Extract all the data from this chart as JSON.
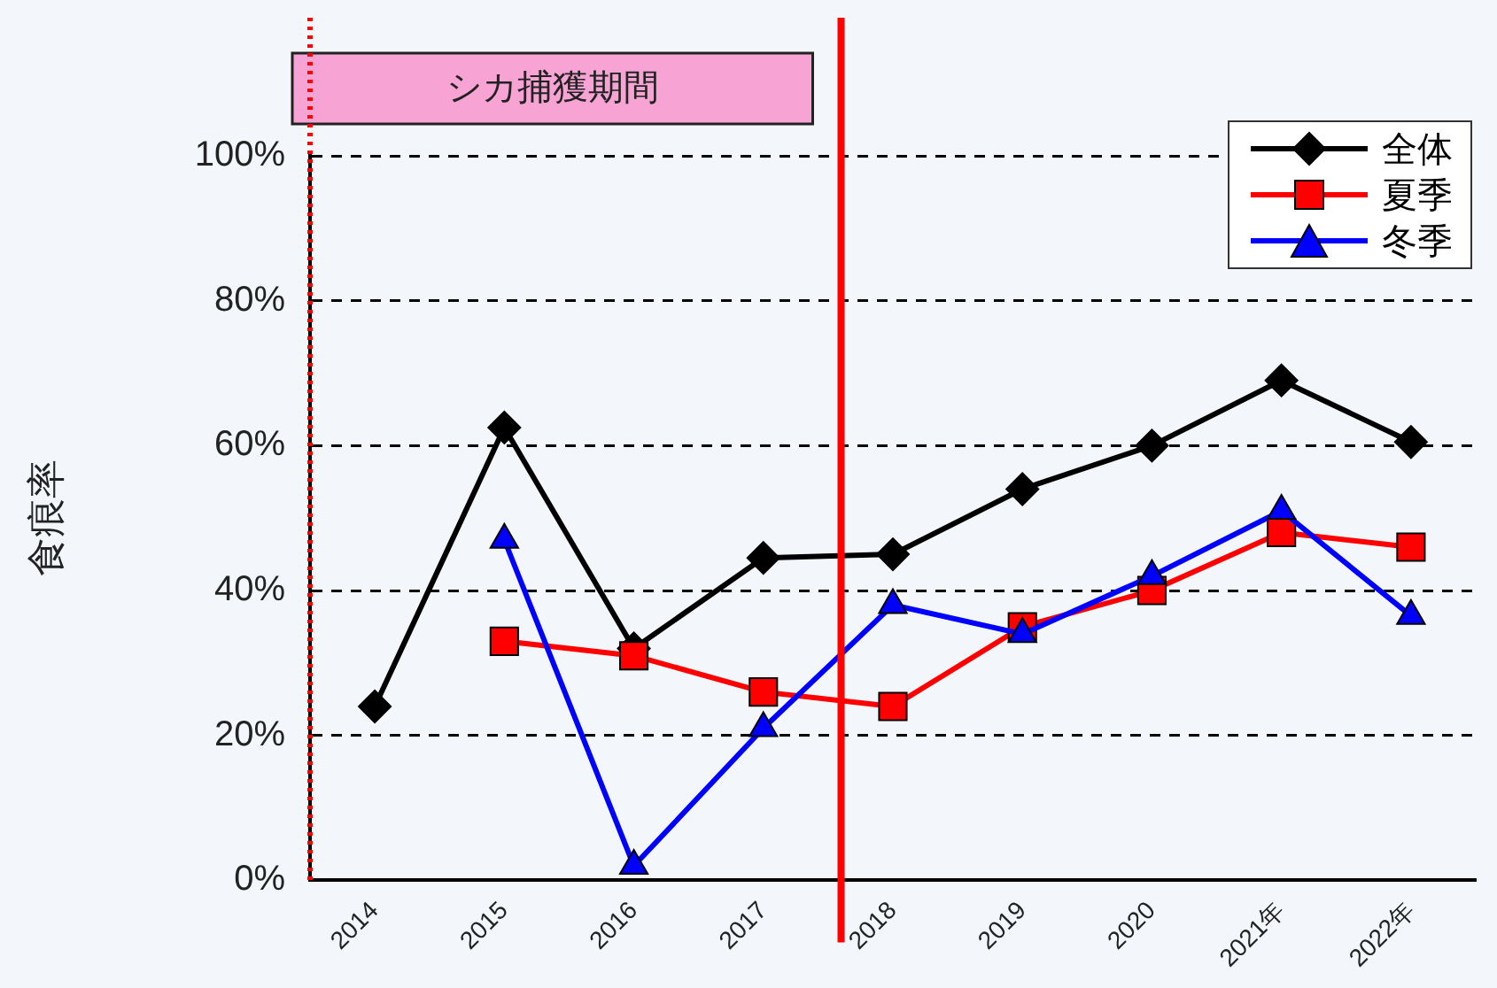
{
  "chart_data": {
    "type": "line",
    "ylabel": "食痕率",
    "x": [
      2014,
      2015,
      2016,
      2017,
      2018,
      2019,
      2020,
      2021,
      2022
    ],
    "xlim": [
      2013.5,
      2022.5
    ],
    "xticks": [
      {
        "value": 2014,
        "label": "2014"
      },
      {
        "value": 2015,
        "label": "2015"
      },
      {
        "value": 2016,
        "label": "2016"
      },
      {
        "value": 2017,
        "label": "2017"
      },
      {
        "value": 2018,
        "label": "2018"
      },
      {
        "value": 2019,
        "label": "2019"
      },
      {
        "value": 2020,
        "label": "2020"
      },
      {
        "value": 2021,
        "label": "2021年"
      },
      {
        "value": 2022,
        "label": "2022年"
      }
    ],
    "ylim": [
      0,
      100
    ],
    "yticks": [
      {
        "value": 0,
        "label": "0%"
      },
      {
        "value": 20,
        "label": "20%"
      },
      {
        "value": 40,
        "label": "40%"
      },
      {
        "value": 60,
        "label": "60%"
      },
      {
        "value": 80,
        "label": "80%"
      },
      {
        "value": 100,
        "label": "100%"
      }
    ],
    "series": [
      {
        "name": "全体",
        "color": "#000000",
        "marker": "diamond",
        "values": [
          24,
          62.5,
          32,
          44.5,
          45,
          54,
          60,
          69,
          60.5
        ]
      },
      {
        "name": "夏季",
        "color": "#ff0000",
        "marker": "square",
        "values": [
          null,
          33,
          31,
          26,
          24,
          35,
          40,
          48,
          46
        ]
      },
      {
        "name": "冬季",
        "color": "#0000ff",
        "marker": "triangle",
        "values": [
          null,
          47,
          2,
          21,
          38,
          34,
          42,
          51,
          36.5
        ]
      }
    ],
    "ref_lines": [
      {
        "axis": "x",
        "value": 2013.5,
        "color": "#ff0000",
        "line_style": "dotted"
      },
      {
        "axis": "x",
        "value": 2017.6,
        "color": "#ff0000",
        "line_style": "solid"
      }
    ],
    "annotations": [
      "シカ捕獲期間"
    ],
    "grid": "y",
    "legend": "top right",
    "line_style": "solid"
  }
}
